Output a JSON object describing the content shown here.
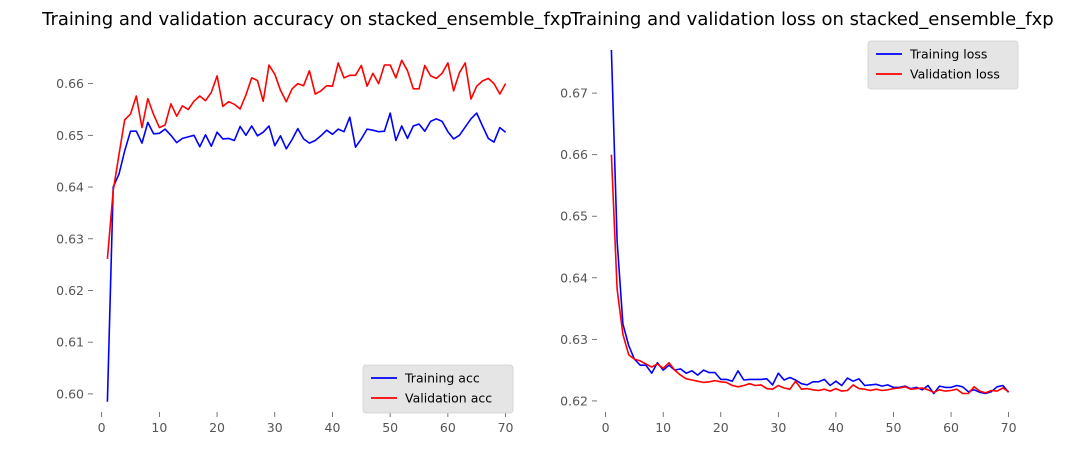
{
  "chart_data": [
    {
      "type": "line",
      "title": "Training and validation accuracy on stacked_ensemble_fxp",
      "xlabel": "",
      "ylabel": "",
      "xlim": [
        -1.5,
        72.5
      ],
      "ylim": [
        0.5965,
        0.6665
      ],
      "xticks": [
        0,
        10,
        20,
        30,
        40,
        50,
        60,
        70
      ],
      "yticks": [
        0.6,
        0.61,
        0.62,
        0.63,
        0.64,
        0.65,
        0.66
      ],
      "ytick_labels": [
        "0.60",
        "0.61",
        "0.62",
        "0.63",
        "0.64",
        "0.65",
        "0.66"
      ],
      "grid": false,
      "legend_position": "lower right",
      "series": [
        {
          "name": "Training acc",
          "color": "#0000ff",
          "x": [
            1,
            2,
            3,
            4,
            5,
            6,
            7,
            8,
            9,
            10,
            11,
            12,
            13,
            14,
            15,
            16,
            17,
            18,
            19,
            20,
            21,
            22,
            23,
            24,
            25,
            26,
            27,
            28,
            29,
            30,
            31,
            32,
            33,
            34,
            35,
            36,
            37,
            38,
            39,
            40,
            41,
            42,
            43,
            44,
            45,
            46,
            47,
            48,
            49,
            50,
            51,
            52,
            53,
            54,
            55,
            56,
            57,
            58,
            59,
            60,
            61,
            62,
            63,
            64,
            65,
            66,
            67,
            68,
            69,
            70
          ],
          "values": [
            0.5985,
            0.64,
            0.6425,
            0.647,
            0.6508,
            0.6508,
            0.6485,
            0.6525,
            0.6503,
            0.6504,
            0.6512,
            0.65,
            0.6486,
            0.6494,
            0.6497,
            0.65,
            0.6478,
            0.6501,
            0.6479,
            0.6506,
            0.6493,
            0.6494,
            0.649,
            0.6517,
            0.65,
            0.6518,
            0.6499,
            0.6506,
            0.6518,
            0.648,
            0.6499,
            0.6474,
            0.6492,
            0.6513,
            0.6493,
            0.6485,
            0.649,
            0.6499,
            0.651,
            0.6502,
            0.6512,
            0.6507,
            0.6535,
            0.6477,
            0.6493,
            0.6512,
            0.651,
            0.6507,
            0.6508,
            0.6543,
            0.649,
            0.6518,
            0.6494,
            0.6518,
            0.6522,
            0.6508,
            0.6527,
            0.6532,
            0.6527,
            0.6507,
            0.6493,
            0.65,
            0.6516,
            0.6532,
            0.6543,
            0.6518,
            0.6494,
            0.6487,
            0.6515,
            0.6506
          ]
        },
        {
          "name": "Validation acc",
          "color": "#ff0000",
          "x": [
            1,
            2,
            3,
            4,
            5,
            6,
            7,
            8,
            9,
            10,
            11,
            12,
            13,
            14,
            15,
            16,
            17,
            18,
            19,
            20,
            21,
            22,
            23,
            24,
            25,
            26,
            27,
            28,
            29,
            30,
            31,
            32,
            33,
            34,
            35,
            36,
            37,
            38,
            39,
            40,
            41,
            42,
            43,
            44,
            45,
            46,
            47,
            48,
            49,
            50,
            51,
            52,
            53,
            54,
            55,
            56,
            57,
            58,
            59,
            60,
            61,
            62,
            63,
            64,
            65,
            66,
            67,
            68,
            69,
            70
          ],
          "values": [
            0.6261,
            0.6393,
            0.6463,
            0.653,
            0.6541,
            0.6576,
            0.6515,
            0.6571,
            0.654,
            0.6515,
            0.652,
            0.6561,
            0.6537,
            0.6557,
            0.655,
            0.6566,
            0.6576,
            0.6567,
            0.6583,
            0.6615,
            0.6556,
            0.6565,
            0.656,
            0.6551,
            0.6578,
            0.6611,
            0.6606,
            0.6566,
            0.6636,
            0.6618,
            0.6587,
            0.6565,
            0.659,
            0.66,
            0.6596,
            0.6625,
            0.658,
            0.6586,
            0.6596,
            0.6595,
            0.664,
            0.6611,
            0.6616,
            0.6616,
            0.6635,
            0.6595,
            0.662,
            0.66,
            0.6636,
            0.6636,
            0.6611,
            0.6645,
            0.6625,
            0.659,
            0.659,
            0.6635,
            0.6615,
            0.661,
            0.662,
            0.664,
            0.6586,
            0.6621,
            0.664,
            0.657,
            0.6595,
            0.6605,
            0.661,
            0.66,
            0.658,
            0.66
          ]
        }
      ]
    },
    {
      "type": "line",
      "title": "Training and validation loss on stacked_ensemble_fxp",
      "xlabel": "",
      "ylabel": "",
      "xlim": [
        -1.5,
        72.5
      ],
      "ylim": [
        0.6182,
        0.677
      ],
      "xticks": [
        0,
        10,
        20,
        30,
        40,
        50,
        60,
        70
      ],
      "yticks": [
        0.62,
        0.63,
        0.64,
        0.65,
        0.66,
        0.67
      ],
      "ytick_labels": [
        "0.62",
        "0.63",
        "0.64",
        "0.65",
        "0.66",
        "0.67"
      ],
      "grid": false,
      "legend_position": "upper right",
      "series": [
        {
          "name": "Training loss",
          "color": "#0000ff",
          "x": [
            1,
            2,
            3,
            4,
            5,
            6,
            7,
            8,
            9,
            10,
            11,
            12,
            13,
            14,
            15,
            16,
            17,
            18,
            19,
            20,
            21,
            22,
            23,
            24,
            25,
            26,
            27,
            28,
            29,
            30,
            31,
            32,
            33,
            34,
            35,
            36,
            37,
            38,
            39,
            40,
            41,
            42,
            43,
            44,
            45,
            46,
            47,
            48,
            49,
            50,
            51,
            52,
            53,
            54,
            55,
            56,
            57,
            58,
            59,
            60,
            61,
            62,
            63,
            64,
            65,
            66,
            67,
            68,
            69,
            70
          ],
          "values": [
            0.677,
            0.646,
            0.6325,
            0.629,
            0.6268,
            0.6258,
            0.6258,
            0.6245,
            0.6262,
            0.625,
            0.6258,
            0.625,
            0.6252,
            0.6245,
            0.6249,
            0.6242,
            0.625,
            0.6246,
            0.6246,
            0.6235,
            0.6235,
            0.6232,
            0.6249,
            0.6234,
            0.6235,
            0.6235,
            0.6235,
            0.6236,
            0.6226,
            0.6245,
            0.6234,
            0.6238,
            0.6234,
            0.6228,
            0.6226,
            0.6231,
            0.6231,
            0.6235,
            0.6225,
            0.6232,
            0.6225,
            0.6237,
            0.6232,
            0.6236,
            0.6225,
            0.6226,
            0.6227,
            0.6224,
            0.6226,
            0.6222,
            0.6222,
            0.6224,
            0.622,
            0.6222,
            0.6218,
            0.6225,
            0.6212,
            0.6224,
            0.6222,
            0.6222,
            0.6225,
            0.6223,
            0.6215,
            0.6218,
            0.6214,
            0.6212,
            0.6215,
            0.6223,
            0.6225,
            0.6214
          ]
        },
        {
          "name": "Validation loss",
          "color": "#ff0000",
          "x": [
            1,
            2,
            3,
            4,
            5,
            6,
            7,
            8,
            9,
            10,
            11,
            12,
            13,
            14,
            15,
            16,
            17,
            18,
            19,
            20,
            21,
            22,
            23,
            24,
            25,
            26,
            27,
            28,
            29,
            30,
            31,
            32,
            33,
            34,
            35,
            36,
            37,
            38,
            39,
            40,
            41,
            42,
            43,
            44,
            45,
            46,
            47,
            48,
            49,
            50,
            51,
            52,
            53,
            54,
            55,
            56,
            57,
            58,
            59,
            60,
            61,
            62,
            63,
            64,
            65,
            66,
            67,
            68,
            69,
            70
          ],
          "values": [
            0.66,
            0.6382,
            0.6308,
            0.6275,
            0.6268,
            0.6265,
            0.626,
            0.6255,
            0.626,
            0.6253,
            0.6262,
            0.625,
            0.6242,
            0.6236,
            0.6234,
            0.6232,
            0.623,
            0.6231,
            0.6233,
            0.6231,
            0.623,
            0.6225,
            0.6223,
            0.6225,
            0.6228,
            0.6225,
            0.6226,
            0.622,
            0.6219,
            0.6225,
            0.6221,
            0.6219,
            0.6232,
            0.6219,
            0.622,
            0.6218,
            0.6217,
            0.6219,
            0.6216,
            0.622,
            0.6216,
            0.6217,
            0.6226,
            0.622,
            0.6219,
            0.6217,
            0.6219,
            0.6217,
            0.6218,
            0.622,
            0.6221,
            0.6223,
            0.6219,
            0.622,
            0.6221,
            0.6218,
            0.6214,
            0.6218,
            0.6216,
            0.6217,
            0.6219,
            0.6212,
            0.6212,
            0.6223,
            0.6216,
            0.6213,
            0.6217,
            0.6216,
            0.6221,
            0.6215
          ]
        }
      ]
    }
  ]
}
